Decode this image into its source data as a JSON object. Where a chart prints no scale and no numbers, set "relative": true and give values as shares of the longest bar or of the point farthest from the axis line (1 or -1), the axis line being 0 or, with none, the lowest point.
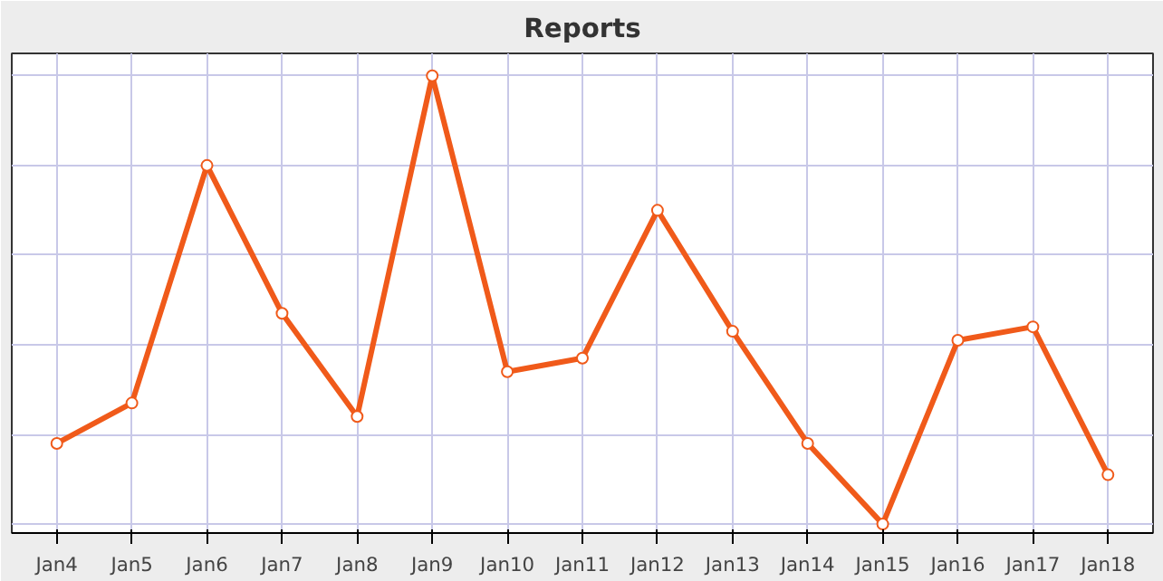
{
  "chart_data": {
    "type": "line",
    "title": "Reports",
    "relative": true,
    "categories": [
      "Jan4",
      "Jan5",
      "Jan6",
      "Jan7",
      "Jan8",
      "Jan9",
      "Jan10",
      "Jan11",
      "Jan12",
      "Jan13",
      "Jan14",
      "Jan15",
      "Jan16",
      "Jan17",
      "Jan18"
    ],
    "series": [
      {
        "color": "#f05a1a",
        "values": [
          0.18,
          0.27,
          0.8,
          0.47,
          0.24,
          1,
          0.34,
          0.37,
          0.7,
          0.43,
          0.18,
          0,
          0.41,
          0.44,
          0.11
        ]
      }
    ],
    "marker": "circle",
    "grid": true,
    "line_style": "solid"
  }
}
